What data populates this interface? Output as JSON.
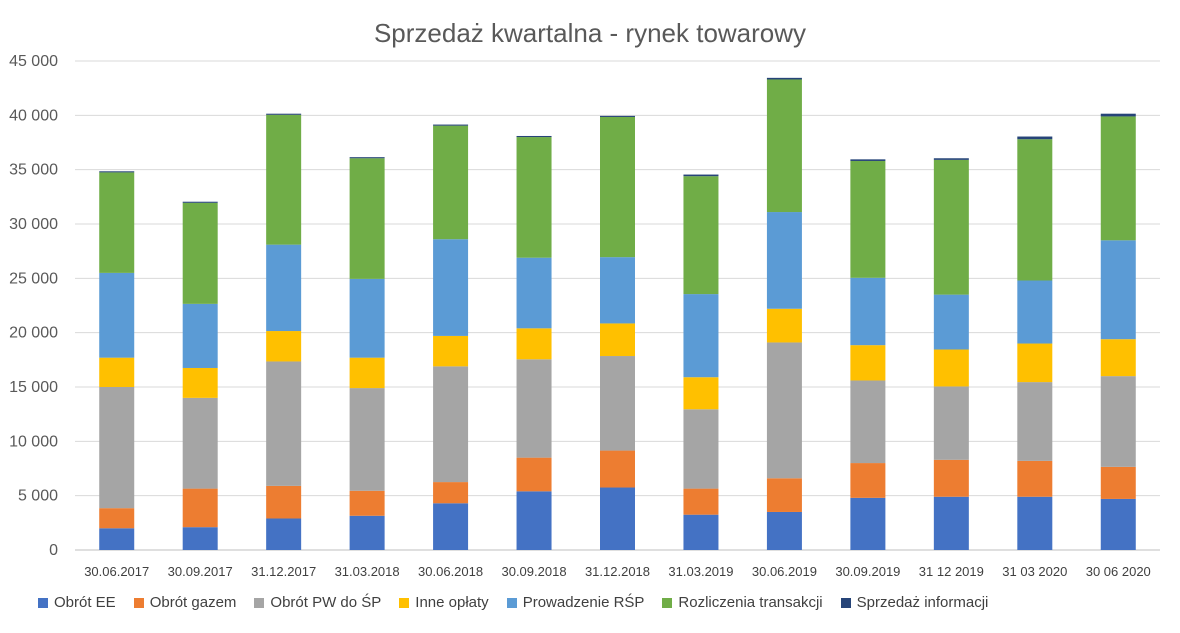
{
  "chart_data": {
    "type": "bar",
    "stacked": true,
    "title": "Sprzedaż kwartalna - rynek towarowy",
    "xlabel": "",
    "ylabel": "",
    "ylim": [
      0,
      45000
    ],
    "yticks": [
      0,
      5000,
      10000,
      15000,
      20000,
      25000,
      30000,
      35000,
      40000,
      45000
    ],
    "ytick_labels": [
      "0",
      "5 000",
      "10 000",
      "15 000",
      "20 000",
      "25 000",
      "30 000",
      "35 000",
      "40 000",
      "45 000"
    ],
    "grid": "horizontal",
    "legend_position": "bottom",
    "categories": [
      "30.06.2017",
      "30.09.2017",
      "31.12.2017",
      "31.03.2018",
      "30.06.2018",
      "30.09.2018",
      "31.12.2018",
      "31.03.2019",
      "30.06.2019",
      "30.09.2019",
      "31 12 2019",
      "31 03 2020",
      "30 06 2020"
    ],
    "series": [
      {
        "name": "Obrót EE",
        "color": "#4472C4",
        "values": [
          2000,
          2100,
          2900,
          3150,
          4300,
          5400,
          5750,
          3250,
          3500,
          4800,
          4900,
          4900,
          4700
        ]
      },
      {
        "name": "Obrót gazem",
        "color": "#ED7D31",
        "values": [
          1850,
          3550,
          3000,
          2300,
          1950,
          3100,
          3400,
          2400,
          3100,
          3200,
          3400,
          3300,
          2950
        ]
      },
      {
        "name": "Obrót PW do ŚP",
        "color": "#A5A5A5",
        "values": [
          11150,
          8350,
          11450,
          9450,
          10650,
          9050,
          8700,
          7300,
          12500,
          7600,
          6750,
          7250,
          8350
        ]
      },
      {
        "name": "Inne opłaty",
        "color": "#FFC000",
        "values": [
          2700,
          2750,
          2800,
          2800,
          2800,
          2850,
          3000,
          2950,
          3100,
          3250,
          3400,
          3550,
          3400
        ]
      },
      {
        "name": "Prowadzenie RŚP",
        "color": "#5B9BD5",
        "values": [
          7800,
          5900,
          7950,
          7250,
          8900,
          6500,
          6100,
          7650,
          8900,
          6200,
          5050,
          5800,
          9100
        ]
      },
      {
        "name": "Rozliczenia transakcji",
        "color": "#70AD47",
        "values": [
          9250,
          9300,
          11950,
          11100,
          10450,
          11100,
          12900,
          10850,
          12200,
          10750,
          12400,
          13000,
          11400
        ]
      },
      {
        "name": "Sprzedaż informacji",
        "color": "#264478",
        "values": [
          100,
          100,
          100,
          100,
          100,
          100,
          100,
          150,
          150,
          150,
          150,
          250,
          250
        ]
      }
    ]
  }
}
